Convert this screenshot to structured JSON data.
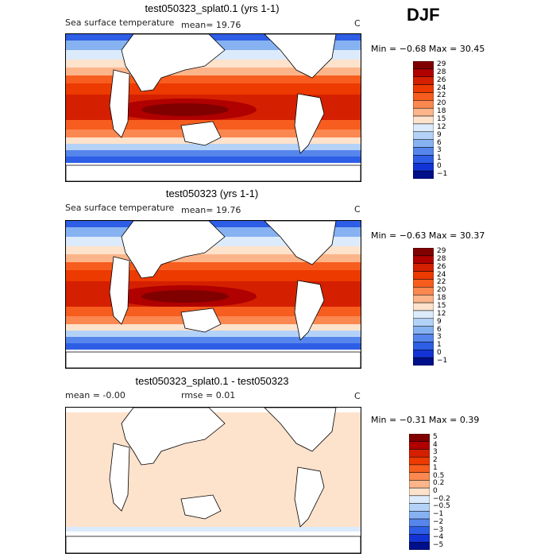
{
  "season": "DJF",
  "panels": [
    {
      "title": "test050323_splat0.1 (yrs 1-1)",
      "subtitle_left": "Sea surface temperature",
      "mean_text": "mean=   19.76",
      "units": "C",
      "min_max": "Min =  −0.68  Max =   30.45"
    },
    {
      "title": "test050323 (yrs 1-1)",
      "subtitle_left": "Sea surface temperature",
      "mean_text": "mean=   19.76",
      "units": "C",
      "min_max": "Min =  −0.63  Max =   30.37"
    },
    {
      "title": "test050323_splat0.1 - test050323",
      "subtitle_left": "mean =   -0.00",
      "mean_text": "rmse =    0.01",
      "units": "C",
      "min_max": "Min =  −0.31  Max =    0.39"
    }
  ],
  "chart_data": [
    {
      "type": "heatmap",
      "title": "test050323_splat0.1 (yrs 1-1)",
      "variable": "Sea surface temperature",
      "mean": 19.76,
      "units": "C",
      "min": -0.68,
      "max": 30.45,
      "colorbar_levels": [
        "29",
        "28",
        "26",
        "24",
        "22",
        "20",
        "18",
        "15",
        "12",
        "9",
        "6",
        "3",
        "1",
        "0",
        "−1"
      ],
      "colorbar_colors": [
        "#800000",
        "#b00000",
        "#d42000",
        "#ec3a00",
        "#f75d1e",
        "#fb8850",
        "#fcb58a",
        "#fde2cc",
        "#dcebfb",
        "#b4d2f7",
        "#86b2f2",
        "#5686ec",
        "#2e5ee5",
        "#1234d6",
        "#000f8a"
      ]
    },
    {
      "type": "heatmap",
      "title": "test050323 (yrs 1-1)",
      "variable": "Sea surface temperature",
      "mean": 19.76,
      "units": "C",
      "min": -0.63,
      "max": 30.37,
      "colorbar_levels": [
        "29",
        "28",
        "26",
        "24",
        "22",
        "20",
        "18",
        "15",
        "12",
        "9",
        "6",
        "3",
        "1",
        "0",
        "−1"
      ],
      "colorbar_colors": [
        "#800000",
        "#b00000",
        "#d42000",
        "#ec3a00",
        "#f75d1e",
        "#fb8850",
        "#fcb58a",
        "#fde2cc",
        "#dcebfb",
        "#b4d2f7",
        "#86b2f2",
        "#5686ec",
        "#2e5ee5",
        "#1234d6",
        "#000f8a"
      ]
    },
    {
      "type": "heatmap",
      "title": "test050323_splat0.1 - test050323",
      "mean": -0.0,
      "rmse": 0.01,
      "units": "C",
      "min": -0.31,
      "max": 0.39,
      "colorbar_levels": [
        "5",
        "4",
        "3",
        "2",
        "1",
        "0.5",
        "0.2",
        "0",
        "−0.2",
        "−0.5",
        "−1",
        "−2",
        "−3",
        "−4",
        "−5"
      ],
      "colorbar_colors": [
        "#800000",
        "#b00000",
        "#d42000",
        "#ec3a00",
        "#f75d1e",
        "#fb8850",
        "#fcb58a",
        "#fde2cc",
        "#dcebfb",
        "#b4d2f7",
        "#86b2f2",
        "#5686ec",
        "#2e5ee5",
        "#1234d6",
        "#000f8a"
      ]
    }
  ]
}
